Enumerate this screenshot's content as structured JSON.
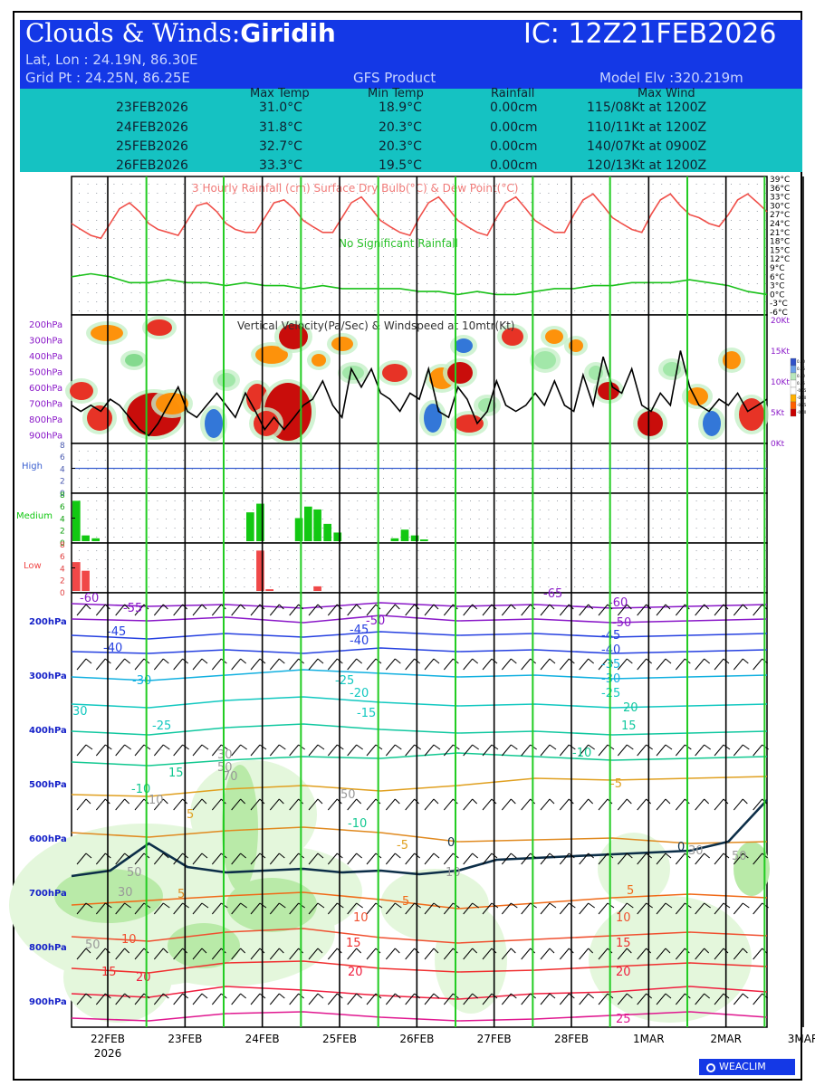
{
  "header": {
    "title_prefix": "Clouds & Winds:",
    "location": "Giridih",
    "ic": "IC: 12Z21FEB2026",
    "latlon": "Lat, Lon : 24.19N, 86.30E",
    "gridpt": "Grid Pt  : 24.25N, 86.25E",
    "product": "GFS Product",
    "elev": "Model Elv :320.219m"
  },
  "forecast_table": {
    "columns": [
      "Max Temp",
      "Min Temp",
      "Rainfall",
      "Max Wind"
    ],
    "rows": [
      {
        "date": "23FEB2026",
        "max": "31.0°C",
        "min": "18.9°C",
        "rain": "0.00cm",
        "wind": "115/08Kt at 1200Z"
      },
      {
        "date": "24FEB2026",
        "max": "31.8°C",
        "min": "20.3°C",
        "rain": "0.00cm",
        "wind": "110/11Kt at 1200Z"
      },
      {
        "date": "25FEB2026",
        "max": "32.7°C",
        "min": "20.3°C",
        "rain": "0.00cm",
        "wind": "140/07Kt at 0900Z"
      },
      {
        "date": "26FEB2026",
        "max": "33.3°C",
        "min": "19.5°C",
        "rain": "0.00cm",
        "wind": "120/13Kt at 1200Z"
      }
    ]
  },
  "colors": {
    "header_bg": "#1438e6",
    "table_bg": "#15c2c2",
    "drybulb": "#f0504a",
    "dewpoint": "#19c019",
    "day_line": "#000000",
    "noon_line": "#22cc22",
    "high_cloud": "#3a5fd0",
    "medium_cloud": "#12c812",
    "low_cloud": "#f04848",
    "pressure_label": "#1420c8"
  },
  "chart_data": [
    {
      "type": "line",
      "title": "3 Hourly Rainfall (cm)  Surface Dry Bulb(°C)  & Dew Point(°C)",
      "annotation": "No Significant Rainfall",
      "y_ticks": [
        "39°C",
        "36°C",
        "33°C",
        "30°C",
        "27°C",
        "24°C",
        "21°C",
        "18°C",
        "15°C",
        "12°C",
        "9°C",
        "6°C",
        "3°C",
        "0°C",
        "-3°C",
        "-6°C"
      ],
      "ylim": [
        -6,
        39
      ],
      "x_unit": "day index from 22FEB (0 = 22FEB 00Z)",
      "series": [
        {
          "name": "Surface Dry Bulb(°C)",
          "values": [
            [
              0.0,
              24
            ],
            [
              0.12,
              22
            ],
            [
              0.25,
              20
            ],
            [
              0.38,
              19
            ],
            [
              0.5,
              24
            ],
            [
              0.62,
              29
            ],
            [
              0.75,
              31
            ],
            [
              0.88,
              28
            ],
            [
              1.0,
              24
            ],
            [
              1.12,
              22
            ],
            [
              1.25,
              21
            ],
            [
              1.38,
              20
            ],
            [
              1.5,
              25
            ],
            [
              1.62,
              30
            ],
            [
              1.75,
              31
            ],
            [
              1.88,
              28
            ],
            [
              2.0,
              24
            ],
            [
              2.12,
              22
            ],
            [
              2.25,
              21
            ],
            [
              2.38,
              21
            ],
            [
              2.5,
              26
            ],
            [
              2.62,
              31
            ],
            [
              2.75,
              32
            ],
            [
              2.88,
              29
            ],
            [
              3.0,
              25
            ],
            [
              3.12,
              23
            ],
            [
              3.25,
              21
            ],
            [
              3.38,
              21
            ],
            [
              3.5,
              26
            ],
            [
              3.62,
              31
            ],
            [
              3.75,
              33
            ],
            [
              3.88,
              29
            ],
            [
              4.0,
              25
            ],
            [
              4.12,
              23
            ],
            [
              4.25,
              21
            ],
            [
              4.38,
              20
            ],
            [
              4.5,
              26
            ],
            [
              4.62,
              31
            ],
            [
              4.75,
              33
            ],
            [
              4.88,
              29
            ],
            [
              5.0,
              25
            ],
            [
              5.12,
              23
            ],
            [
              5.25,
              21
            ],
            [
              5.38,
              20
            ],
            [
              5.5,
              26
            ],
            [
              5.62,
              31
            ],
            [
              5.75,
              33
            ],
            [
              5.88,
              29
            ],
            [
              6.0,
              25
            ],
            [
              6.12,
              23
            ],
            [
              6.25,
              21
            ],
            [
              6.38,
              21
            ],
            [
              6.5,
              27
            ],
            [
              6.62,
              32
            ],
            [
              6.75,
              34
            ],
            [
              6.88,
              30
            ],
            [
              7.0,
              26
            ],
            [
              7.12,
              24
            ],
            [
              7.25,
              22
            ],
            [
              7.38,
              21
            ],
            [
              7.5,
              27
            ],
            [
              7.62,
              32
            ],
            [
              7.75,
              34
            ],
            [
              7.88,
              30
            ],
            [
              8.0,
              27
            ],
            [
              8.12,
              26
            ],
            [
              8.25,
              24
            ],
            [
              8.38,
              23
            ],
            [
              8.5,
              27
            ],
            [
              8.62,
              32
            ],
            [
              8.75,
              34
            ],
            [
              8.88,
              31
            ],
            [
              9.0,
              28
            ]
          ]
        },
        {
          "name": "Dew Point(°C)",
          "values": [
            [
              0.0,
              6
            ],
            [
              0.25,
              7
            ],
            [
              0.5,
              6
            ],
            [
              0.75,
              4
            ],
            [
              1.0,
              4
            ],
            [
              1.25,
              5
            ],
            [
              1.5,
              4
            ],
            [
              1.75,
              4
            ],
            [
              2.0,
              3
            ],
            [
              2.25,
              4
            ],
            [
              2.5,
              3
            ],
            [
              2.75,
              3
            ],
            [
              3.0,
              2
            ],
            [
              3.25,
              3
            ],
            [
              3.5,
              2
            ],
            [
              3.75,
              2
            ],
            [
              4.0,
              2
            ],
            [
              4.25,
              2
            ],
            [
              4.5,
              1
            ],
            [
              4.75,
              1
            ],
            [
              5.0,
              0
            ],
            [
              5.25,
              1
            ],
            [
              5.5,
              0
            ],
            [
              5.75,
              0
            ],
            [
              6.0,
              1
            ],
            [
              6.25,
              2
            ],
            [
              6.5,
              2
            ],
            [
              6.75,
              3
            ],
            [
              7.0,
              3
            ],
            [
              7.25,
              4
            ],
            [
              7.5,
              4
            ],
            [
              7.75,
              4
            ],
            [
              8.0,
              5
            ],
            [
              8.25,
              4
            ],
            [
              8.5,
              3
            ],
            [
              8.75,
              1
            ],
            [
              9.0,
              0
            ]
          ]
        }
      ]
    },
    {
      "type": "heatmap",
      "title": "Vertical Velocity(Pa/Sec) & Windspeed at 10mtr(Kt)",
      "y_levels": [
        "200hPa",
        "300hPa",
        "400hPa",
        "500hPa",
        "600hPa",
        "700hPa",
        "800hPa",
        "900hPa"
      ],
      "right_ticks": [
        "20Kt",
        "15Kt",
        "10Kt",
        "5Kt",
        "0Kt"
      ],
      "legend_ticks": [
        "0.50",
        "0.25",
        "0.10",
        "0.05",
        "-0.05",
        "-0.10",
        "-0.25",
        "-0.50"
      ],
      "wind_10m_kt": [
        [
          0.0,
          6
        ],
        [
          0.12,
          5
        ],
        [
          0.25,
          6
        ],
        [
          0.38,
          5
        ],
        [
          0.5,
          7
        ],
        [
          0.62,
          6
        ],
        [
          0.75,
          4
        ],
        [
          0.88,
          2
        ],
        [
          1.0,
          1
        ],
        [
          1.12,
          3
        ],
        [
          1.25,
          6
        ],
        [
          1.38,
          9
        ],
        [
          1.5,
          5
        ],
        [
          1.62,
          4
        ],
        [
          1.75,
          6
        ],
        [
          1.88,
          8
        ],
        [
          2.0,
          6
        ],
        [
          2.12,
          4
        ],
        [
          2.25,
          8
        ],
        [
          2.38,
          5
        ],
        [
          2.5,
          2
        ],
        [
          2.62,
          4
        ],
        [
          2.75,
          2
        ],
        [
          2.88,
          4
        ],
        [
          3.0,
          6
        ],
        [
          3.12,
          7
        ],
        [
          3.25,
          10
        ],
        [
          3.38,
          6
        ],
        [
          3.5,
          4
        ],
        [
          3.62,
          12
        ],
        [
          3.75,
          9
        ],
        [
          3.88,
          12
        ],
        [
          4.0,
          8
        ],
        [
          4.12,
          7
        ],
        [
          4.25,
          5
        ],
        [
          4.38,
          8
        ],
        [
          4.5,
          7
        ],
        [
          4.62,
          12
        ],
        [
          4.75,
          5
        ],
        [
          4.88,
          4
        ],
        [
          5.0,
          9
        ],
        [
          5.12,
          7
        ],
        [
          5.25,
          3
        ],
        [
          5.38,
          5
        ],
        [
          5.5,
          10
        ],
        [
          5.62,
          6
        ],
        [
          5.75,
          5
        ],
        [
          5.88,
          6
        ],
        [
          6.0,
          8
        ],
        [
          6.12,
          6
        ],
        [
          6.25,
          10
        ],
        [
          6.38,
          6
        ],
        [
          6.5,
          5
        ],
        [
          6.62,
          11
        ],
        [
          6.75,
          6
        ],
        [
          6.88,
          14
        ],
        [
          7.0,
          9
        ],
        [
          7.12,
          8
        ],
        [
          7.25,
          12
        ],
        [
          7.38,
          6
        ],
        [
          7.5,
          5
        ],
        [
          7.62,
          8
        ],
        [
          7.75,
          6
        ],
        [
          7.88,
          15
        ],
        [
          8.0,
          9
        ],
        [
          8.12,
          6
        ],
        [
          8.25,
          5
        ],
        [
          8.38,
          7
        ],
        [
          8.5,
          6
        ],
        [
          8.62,
          8
        ],
        [
          8.75,
          5
        ],
        [
          8.88,
          6
        ],
        [
          9.0,
          7
        ]
      ]
    },
    {
      "type": "bar",
      "title": "Cloud Cover",
      "panels": [
        {
          "name": "High",
          "y_ticks": [
            "8",
            "6",
            "4",
            "2",
            "0"
          ],
          "ylim": [
            0,
            8
          ],
          "values": []
        },
        {
          "name": "Medium",
          "y_ticks": [
            "8",
            "6",
            "4",
            "2",
            "0"
          ],
          "ylim": [
            0,
            8
          ],
          "values": [
            [
              0.0,
              7
            ],
            [
              0.12,
              1
            ],
            [
              0.25,
              0.5
            ],
            [
              2.25,
              5
            ],
            [
              2.38,
              6.5
            ],
            [
              2.88,
              4
            ],
            [
              3.0,
              6
            ],
            [
              3.12,
              5.5
            ],
            [
              3.25,
              3
            ],
            [
              3.38,
              1.5
            ],
            [
              4.12,
              0.5
            ],
            [
              4.25,
              2
            ],
            [
              4.38,
              1
            ],
            [
              4.5,
              0.3
            ]
          ]
        },
        {
          "name": "Low",
          "y_ticks": [
            "8",
            "6",
            "4",
            "2",
            "0"
          ],
          "ylim": [
            0,
            8
          ],
          "values": [
            [
              0.0,
              5
            ],
            [
              0.12,
              3.5
            ],
            [
              2.38,
              7
            ],
            [
              2.5,
              0.3
            ],
            [
              3.12,
              0.8
            ]
          ]
        }
      ]
    },
    {
      "type": "line",
      "title": "Temperature (°C), Relative Humidity & Winds",
      "y_levels": [
        "200hPa",
        "300hPa",
        "400hPa",
        "500hPa",
        "600hPa",
        "700hPa",
        "800hPa",
        "900hPa"
      ],
      "temperature_labels": [
        "-60",
        "-55",
        "-50",
        "-45",
        "-40",
        "-35",
        "-30",
        "-25",
        "-20",
        "-15",
        "-10",
        "-5",
        "0",
        "5",
        "10",
        "15",
        "20",
        "25"
      ],
      "rh_labels": [
        "10",
        "30",
        "50",
        "70"
      ]
    }
  ],
  "x_axis": {
    "labels": [
      "22FEB",
      "23FEB",
      "24FEB",
      "25FEB",
      "26FEB",
      "27FEB",
      "28FEB",
      "1MAR",
      "2MAR",
      "3MAR"
    ],
    "year": "2026"
  },
  "branding": {
    "label": "WEACLIM"
  }
}
